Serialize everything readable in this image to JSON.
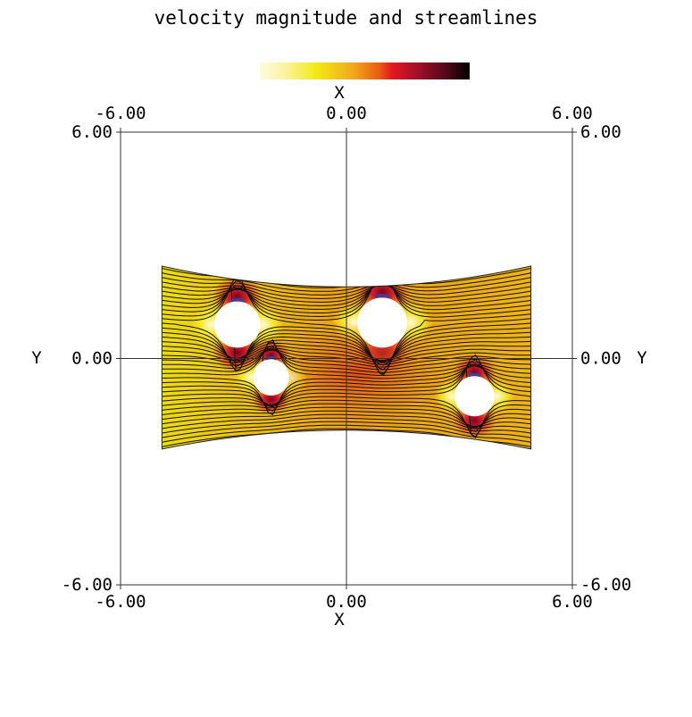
{
  "chart_data": {
    "type": "heatmap",
    "title": "velocity magnitude and streamlines",
    "colorbar_label": "X",
    "colormap": [
      "#fffbe0",
      "#f2ea14",
      "#f0a61a",
      "#ea5a12",
      "#e31822",
      "#a2102a",
      "#000000"
    ],
    "xlabel_top": "X",
    "xlabel_bottom": "X",
    "ylabel_left": "Y",
    "ylabel_right": "Y",
    "xlim": [
      -6,
      6
    ],
    "ylim": [
      -6,
      6
    ],
    "x_ticks": [
      "-6.00",
      "0.00",
      "6.00"
    ],
    "y_ticks": [
      "-6.00",
      "0.00",
      "6.00"
    ],
    "grid": "axes through origin",
    "domain": {
      "x_range": [
        -4.9,
        4.9
      ],
      "top_edge_y": {
        "ends": 2.45,
        "middle": 1.9
      },
      "bottom_edge_y": {
        "ends": -2.4,
        "middle": -1.9
      }
    },
    "obstacles": [
      {
        "cx": -2.9,
        "cy": 0.9,
        "r": 0.6
      },
      {
        "cx": 0.95,
        "cy": 0.95,
        "r": 0.65
      },
      {
        "cx": -2.0,
        "cy": -0.5,
        "r": 0.47
      },
      {
        "cx": 3.4,
        "cy": -1.0,
        "r": 0.52
      }
    ],
    "flow": {
      "direction": "left-to-right",
      "streamline_count": 40
    }
  }
}
